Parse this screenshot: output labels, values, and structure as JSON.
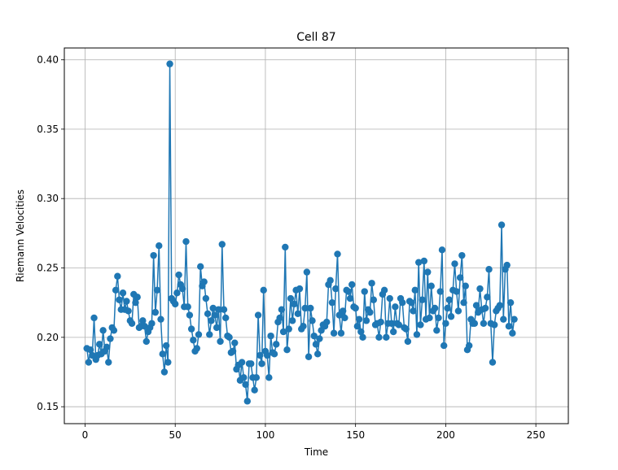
{
  "chart_data": {
    "type": "line",
    "title": "Cell 87",
    "xlabel": "Time",
    "ylabel": "Riemann Velocities",
    "xlim": [
      -11.5,
      268
    ],
    "ylim": [
      0.1378,
      0.4085
    ],
    "xticks": [
      0,
      50,
      100,
      150,
      200,
      250
    ],
    "yticks": [
      0.15,
      0.2,
      0.25,
      0.3,
      0.35,
      0.4
    ],
    "xtick_labels": [
      "0",
      "50",
      "100",
      "150",
      "200",
      "250"
    ],
    "ytick_labels": [
      "0.15",
      "0.20",
      "0.25",
      "0.30",
      "0.35",
      "0.40"
    ],
    "grid": true,
    "marker": "circle",
    "color": "#1f77b4",
    "series": [
      {
        "values": [
          0.192,
          0.182,
          0.191,
          0.187,
          0.214,
          0.184,
          0.187,
          0.195,
          0.188,
          0.205,
          0.19,
          0.193,
          0.182,
          0.199,
          0.207,
          0.205,
          0.234,
          0.244,
          0.227,
          0.22,
          0.232,
          0.22,
          0.226,
          0.219,
          0.212,
          0.21,
          0.231,
          0.225,
          0.229,
          0.207,
          0.208,
          0.212,
          0.208,
          0.197,
          0.204,
          0.207,
          0.21,
          0.259,
          0.218,
          0.234,
          0.266,
          0.213,
          0.188,
          0.175,
          0.194,
          0.182,
          0.397,
          0.228,
          0.226,
          0.224,
          0.232,
          0.245,
          0.238,
          0.235,
          0.222,
          0.269,
          0.222,
          0.216,
          0.206,
          0.198,
          0.19,
          0.192,
          0.202,
          0.251,
          0.237,
          0.24,
          0.228,
          0.217,
          0.202,
          0.212,
          0.221,
          0.216,
          0.207,
          0.22,
          0.197,
          0.267,
          0.22,
          0.214,
          0.201,
          0.2,
          0.189,
          0.19,
          0.196,
          0.177,
          0.18,
          0.169,
          0.182,
          0.171,
          0.166,
          0.154,
          0.181,
          0.181,
          0.171,
          0.162,
          0.171,
          0.216,
          0.187,
          0.181,
          0.234,
          0.19,
          0.187,
          0.171,
          0.201,
          0.189,
          0.188,
          0.195,
          0.211,
          0.214,
          0.22,
          0.204,
          0.265,
          0.191,
          0.206,
          0.228,
          0.212,
          0.224,
          0.234,
          0.217,
          0.235,
          0.206,
          0.208,
          0.221,
          0.247,
          0.186,
          0.221,
          0.212,
          0.201,
          0.195,
          0.188,
          0.199,
          0.205,
          0.209,
          0.208,
          0.211,
          0.238,
          0.241,
          0.225,
          0.203,
          0.235,
          0.26,
          0.216,
          0.203,
          0.219,
          0.214,
          0.234,
          0.233,
          0.228,
          0.238,
          0.222,
          0.221,
          0.208,
          0.213,
          0.204,
          0.2,
          0.233,
          0.212,
          0.22,
          0.218,
          0.239,
          0.227,
          0.209,
          0.21,
          0.2,
          0.211,
          0.231,
          0.234,
          0.2,
          0.21,
          0.228,
          0.21,
          0.204,
          0.222,
          0.21,
          0.209,
          0.228,
          0.225,
          0.207,
          0.206,
          0.197,
          0.226,
          0.225,
          0.219,
          0.234,
          0.202,
          0.254,
          0.209,
          0.227,
          0.255,
          0.213,
          0.247,
          0.214,
          0.237,
          0.219,
          0.221,
          0.205,
          0.214,
          0.233,
          0.263,
          0.194,
          0.21,
          0.221,
          0.227,
          0.215,
          0.234,
          0.253,
          0.233,
          0.219,
          0.243,
          0.259,
          0.225,
          0.237,
          0.191,
          0.194,
          0.213,
          0.21,
          0.21,
          0.223,
          0.218,
          0.235,
          0.22,
          0.21,
          0.221,
          0.229,
          0.249,
          0.21,
          0.182,
          0.209,
          0.219,
          0.221,
          0.223,
          0.281,
          0.213,
          0.249,
          0.252,
          0.208,
          0.225,
          0.203,
          0.213
        ]
      }
    ]
  }
}
